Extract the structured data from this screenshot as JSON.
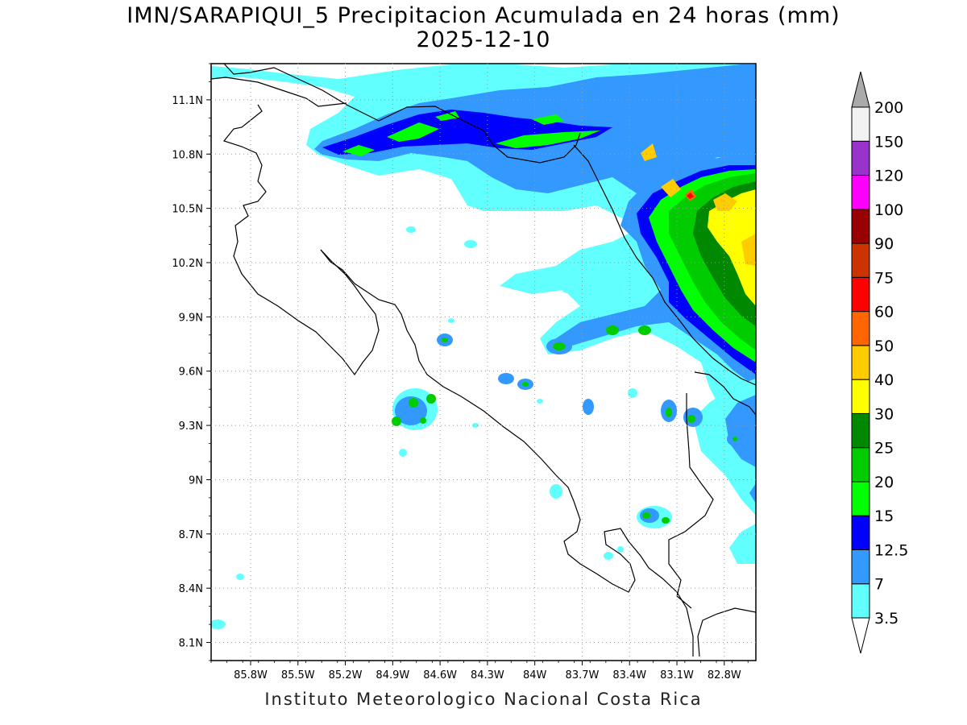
{
  "title": {
    "line1": "IMN/SARAPIQUI_5 Precipitacion Acumulada en 24 horas (mm)",
    "line2": "2025-12-10"
  },
  "footer": "Instituto Meteorologico Nacional Costa Rica",
  "map": {
    "lon_range": [
      -86.05,
      -82.6
    ],
    "lat_range": [
      8.0,
      11.3
    ],
    "lat_ticks": [
      {
        "value": 11.1,
        "label": "11.1N"
      },
      {
        "value": 10.8,
        "label": "10.8N"
      },
      {
        "value": 10.5,
        "label": "10.5N"
      },
      {
        "value": 10.2,
        "label": "10.2N"
      },
      {
        "value": 9.9,
        "label": "9.9N"
      },
      {
        "value": 9.6,
        "label": "9.6N"
      },
      {
        "value": 9.3,
        "label": "9.3N"
      },
      {
        "value": 9.0,
        "label": "9N"
      },
      {
        "value": 8.7,
        "label": "8.7N"
      },
      {
        "value": 8.4,
        "label": "8.4N"
      },
      {
        "value": 8.1,
        "label": "8.1N"
      }
    ],
    "lon_ticks": [
      {
        "value": -85.8,
        "label": "85.8W"
      },
      {
        "value": -85.5,
        "label": "85.5W"
      },
      {
        "value": -85.2,
        "label": "85.2W"
      },
      {
        "value": -84.9,
        "label": "84.9W"
      },
      {
        "value": -84.6,
        "label": "84.6W"
      },
      {
        "value": -84.3,
        "label": "84.3W"
      },
      {
        "value": -84.0,
        "label": "84W"
      },
      {
        "value": -83.7,
        "label": "83.7W"
      },
      {
        "value": -83.4,
        "label": "83.4W"
      },
      {
        "value": -83.1,
        "label": "83.1W"
      },
      {
        "value": -82.8,
        "label": "82.8W"
      }
    ],
    "grid": "dotted"
  },
  "colorbar": {
    "labels": [
      "3.5",
      "7",
      "12.5",
      "15",
      "20",
      "25",
      "30",
      "40",
      "50",
      "60",
      "75",
      "90",
      "100",
      "120",
      "150",
      "200"
    ],
    "colors": [
      "#62ffff",
      "#3399ff",
      "#0000ff",
      "#00ff00",
      "#00cc00",
      "#008800",
      "#ffff00",
      "#ffcc00",
      "#ff6600",
      "#ff0000",
      "#cc3300",
      "#990000",
      "#ff00ff",
      "#9933cc",
      "#f2f2f2"
    ],
    "top_arrow_color": "#aaaaaa",
    "bottom_arrow_color": "#ffffff"
  }
}
